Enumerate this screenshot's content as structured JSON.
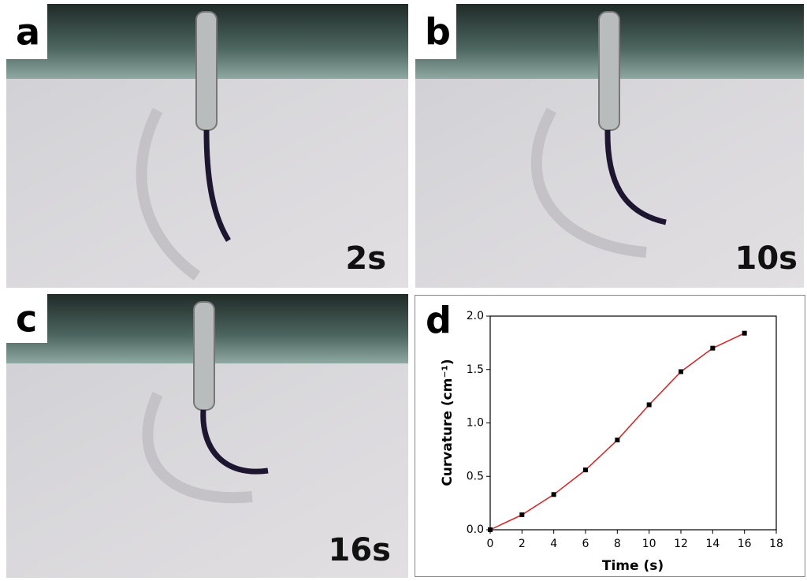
{
  "panels": [
    {
      "label": "a",
      "time": "2s"
    },
    {
      "label": "b",
      "time": "10s"
    },
    {
      "label": "c",
      "time": "16s"
    }
  ],
  "chart_data": {
    "type": "line",
    "label": "d",
    "xlabel": "Time (s)",
    "ylabel": "Curvature (cm⁻¹)",
    "x": [
      0,
      2,
      4,
      6,
      8,
      10,
      12,
      14,
      16
    ],
    "series": [
      {
        "color": "#e02020",
        "values": [
          0,
          0.14,
          0.33,
          0.56,
          0.84,
          1.17,
          1.48,
          1.7,
          1.84
        ]
      }
    ],
    "xlim": [
      0,
      18
    ],
    "xticks": [
      0,
      2,
      4,
      6,
      8,
      10,
      12,
      14,
      16,
      18
    ],
    "ylim": [
      0,
      2.0
    ],
    "yticks": [
      {
        "value": 0,
        "label": "0.0"
      },
      {
        "value": 0.5,
        "label": "0.5"
      },
      {
        "value": 1.0,
        "label": "1.0"
      },
      {
        "value": 1.5,
        "label": "1.5"
      },
      {
        "value": 2.0,
        "label": "2.0"
      }
    ]
  }
}
